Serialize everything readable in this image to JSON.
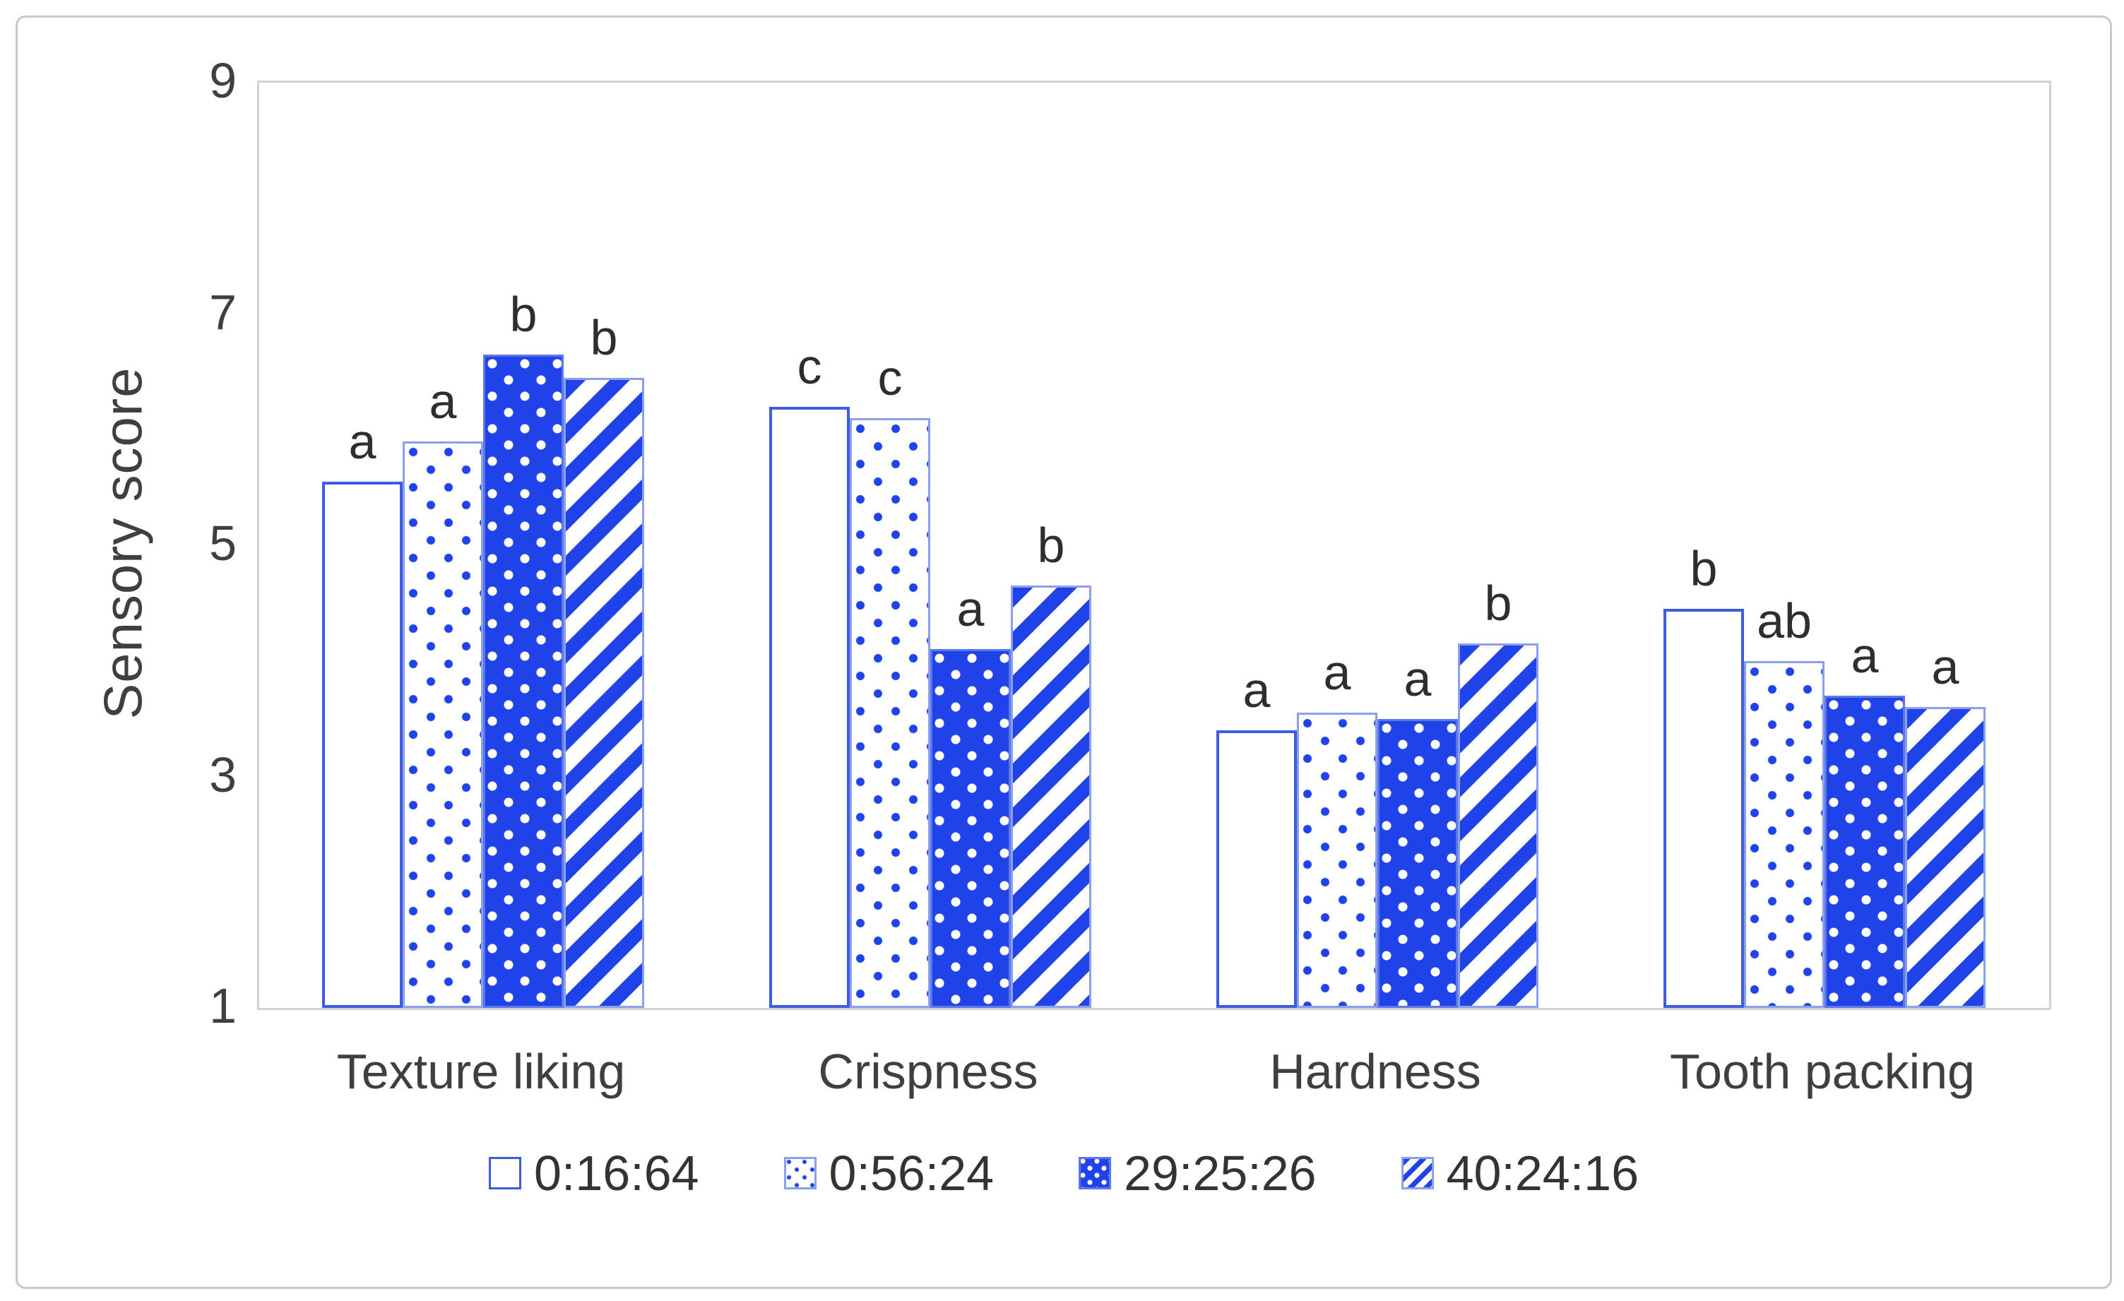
{
  "chart_data": {
    "type": "bar",
    "title": "",
    "ylabel": "Sensory score",
    "xlabel": "",
    "ylim": [
      1,
      9
    ],
    "yticks": [
      9,
      7,
      5,
      3,
      1
    ],
    "grid": false,
    "legend_position": "bottom",
    "categories": [
      "Texture liking",
      "Crispness",
      "Hardness",
      "Tooth packing"
    ],
    "series": [
      {
        "name": "0:16:64",
        "pattern": "plain",
        "values": [
          5.55,
          6.2,
          3.4,
          4.45
        ],
        "letters": [
          "a",
          "c",
          "a",
          "b"
        ]
      },
      {
        "name": "0:56:24",
        "pattern": "dots-sparse",
        "values": [
          5.9,
          6.1,
          3.55,
          4.0
        ],
        "letters": [
          "a",
          "c",
          "a",
          "ab"
        ]
      },
      {
        "name": "29:25:26",
        "pattern": "dots-dense",
        "values": [
          6.65,
          4.1,
          3.5,
          3.7
        ],
        "letters": [
          "b",
          "a",
          "a",
          "a"
        ]
      },
      {
        "name": "40:24:16",
        "pattern": "diagonal",
        "values": [
          6.45,
          4.65,
          4.15,
          3.6
        ],
        "letters": [
          "b",
          "b",
          "b",
          "a"
        ]
      }
    ],
    "colors": {
      "bar_blue": "#1f43e8",
      "outline_blue": "#3d5ce0",
      "axis_text": "#3f3f3f",
      "axis_line": "#d2d2d2",
      "figure_border": "#c9c9c9"
    }
  }
}
